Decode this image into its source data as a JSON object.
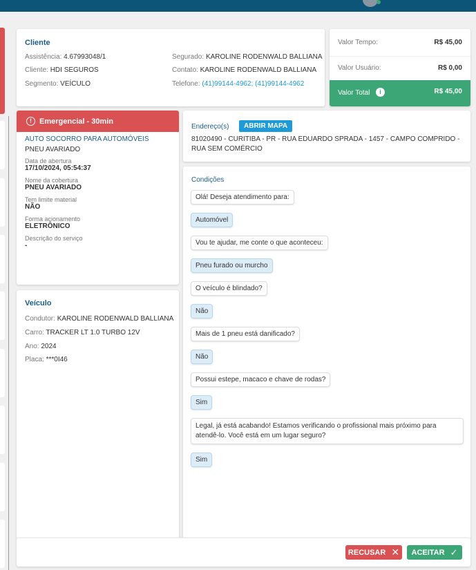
{
  "cliente": {
    "title": "Cliente",
    "assistencia_label": "Assistência:",
    "assistencia": "4.67993048/1",
    "cliente_label": "Cliente:",
    "cliente": "HDI SEGUROS",
    "segmento_label": "Segmento:",
    "segmento": "VEÍCULO",
    "segurado_label": "Segurado:",
    "segurado": "KAROLINE RODENWALD BALLIANA",
    "contato_label": "Contato:",
    "contato": "KAROLINE RODENWALD BALLIANA",
    "telefone_label": "Telefone:",
    "telefone": "(41)99144-4962; (41)99144-4962"
  },
  "valores": {
    "tempo_label": "Valor Tempo:",
    "tempo": "R$ 45,00",
    "usuario_label": "Valor Usuário:",
    "usuario": "R$ 0,00",
    "total_label": "Valor Total",
    "total": "R$ 45,00"
  },
  "servico": {
    "badge": "Emergencial - 30min",
    "tipo": "AUTO SOCORRO PARA AUTOMÓVEIS",
    "subtipo": "PNEU AVARIADO",
    "fields": [
      {
        "label": "Data de abertura",
        "value": "17/10/2024, 05:54:37"
      },
      {
        "label": "Nome da cobertura",
        "value": "PNEU AVARIADO"
      },
      {
        "label": "Tem limite material",
        "value": "NÃO"
      },
      {
        "label": "Forma acionamento",
        "value": "ELETRÔNICO"
      },
      {
        "label": "Descrição do serviço",
        "value": "-"
      }
    ]
  },
  "veiculo": {
    "title": "Veículo",
    "condutor_label": "Condutor:",
    "condutor": "KAROLINE RODENWALD BALLIANA",
    "carro_label": "Carro:",
    "carro": "TRACKER LT 1.0 TURBO 12V",
    "ano_label": "Ano:",
    "ano": "2024",
    "placa_label": "Placa:",
    "placa": "***0I46"
  },
  "endereco": {
    "title": "Endereço(s)",
    "button": "ABRIR MAPA",
    "text": "81020490 - CURITIBA - PR - RUA EDUARDO SPRADA - 1457 - CAMPO COMPRIDO - RUA SEM COMÉRCIO"
  },
  "condicoes": {
    "title": "Condições",
    "messages": [
      {
        "from": "bot",
        "text": "Olá! Deseja atendimento para:"
      },
      {
        "from": "user",
        "text": "Automóvel"
      },
      {
        "from": "bot",
        "text": "Vou te ajudar, me conte o que aconteceu:"
      },
      {
        "from": "user",
        "text": "Pneu furado ou murcho"
      },
      {
        "from": "bot",
        "text": "O veículo é blindado?"
      },
      {
        "from": "user",
        "text": "Não"
      },
      {
        "from": "bot",
        "text": "Mais de 1 pneu está danificado?"
      },
      {
        "from": "user",
        "text": "Não"
      },
      {
        "from": "bot",
        "text": "Possui estepe, macaco e chave de rodas?"
      },
      {
        "from": "user",
        "text": "Sim"
      },
      {
        "from": "bot",
        "text": "Legal, já está acabando! Estamos verificando o profissional mais próximo para atendê-lo. Você está em um lugar seguro?"
      },
      {
        "from": "user",
        "text": "Sim"
      }
    ]
  },
  "actions": {
    "recusar": "RECUSAR",
    "aceitar": "ACEITAR"
  },
  "colors": {
    "header": "#0d5479",
    "danger": "#d95152",
    "success": "#3da677",
    "accent": "#1c5d87",
    "link": "#1e9ad6"
  }
}
